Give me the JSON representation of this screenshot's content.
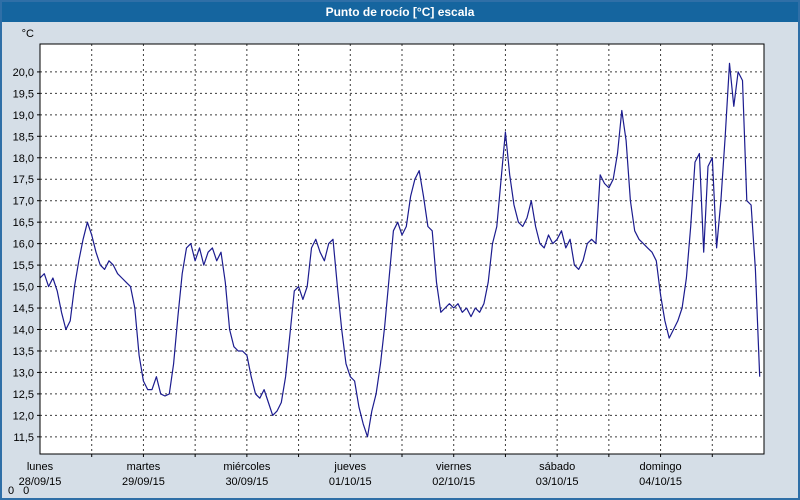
{
  "window": {
    "title": "Punto de rocío [°C] escala"
  },
  "footer": {
    "status": "0  0"
  },
  "chart_data": {
    "type": "line",
    "title": "Punto de rocío [°C] escala",
    "xlabel": "",
    "ylabel": "°C",
    "ylim": [
      11.1,
      20.65
    ],
    "grid": "dashed",
    "legend": "none",
    "line_color": "#1c1c8f",
    "yticks": [
      11.5,
      12.0,
      12.5,
      13.0,
      13.5,
      14.0,
      14.5,
      15.0,
      15.5,
      16.0,
      16.5,
      17.0,
      17.5,
      18.0,
      18.5,
      19.0,
      19.5,
      20.0
    ],
    "ytick_labels": [
      "11,5",
      "12,0",
      "12,5",
      "13,0",
      "13,5",
      "14,0",
      "14,5",
      "15,0",
      "15,5",
      "16,0",
      "16,5",
      "17,0",
      "17,5",
      "18,0",
      "18,5",
      "19,0",
      "19,5",
      "20,0"
    ],
    "x_categories": [
      {
        "label": "lunes",
        "date": "28/09/15"
      },
      {
        "label": "martes",
        "date": "29/09/15"
      },
      {
        "label": "miércoles",
        "date": "30/09/15"
      },
      {
        "label": "jueves",
        "date": "01/10/15"
      },
      {
        "label": "viernes",
        "date": "02/10/15"
      },
      {
        "label": "sábado",
        "date": "03/10/15"
      },
      {
        "label": "domingo",
        "date": "04/10/15"
      }
    ],
    "points_per_day": 24,
    "series": [
      {
        "name": "Punto de rocío [°C]",
        "color": "#1c1c8f",
        "values": [
          15.2,
          15.3,
          15.0,
          15.2,
          14.9,
          14.4,
          14.0,
          14.2,
          15.0,
          15.6,
          16.1,
          16.5,
          16.2,
          15.8,
          15.5,
          15.4,
          15.6,
          15.5,
          15.3,
          15.2,
          15.1,
          15.0,
          14.5,
          13.4,
          12.8,
          12.6,
          12.6,
          12.9,
          12.5,
          12.45,
          12.5,
          13.2,
          14.3,
          15.3,
          15.9,
          16.0,
          15.6,
          15.9,
          15.5,
          15.8,
          15.9,
          15.6,
          15.8,
          15.1,
          14.0,
          13.6,
          13.5,
          13.5,
          13.4,
          12.9,
          12.5,
          12.4,
          12.6,
          12.3,
          12.0,
          12.1,
          12.3,
          12.9,
          13.9,
          14.9,
          15.0,
          14.7,
          15.0,
          15.9,
          16.1,
          15.8,
          15.6,
          16.0,
          16.1,
          15.0,
          14.0,
          13.2,
          12.9,
          12.8,
          12.2,
          11.8,
          11.5,
          12.1,
          12.5,
          13.2,
          14.1,
          15.2,
          16.3,
          16.5,
          16.2,
          16.4,
          17.1,
          17.5,
          17.7,
          17.1,
          16.4,
          16.3,
          15.1,
          14.4,
          14.5,
          14.6,
          14.5,
          14.6,
          14.4,
          14.5,
          14.3,
          14.5,
          14.4,
          14.6,
          15.1,
          16.0,
          16.4,
          17.5,
          18.6,
          17.6,
          16.9,
          16.5,
          16.4,
          16.6,
          17.0,
          16.4,
          16.0,
          15.9,
          16.2,
          16.0,
          16.1,
          16.3,
          15.9,
          16.1,
          15.5,
          15.4,
          15.6,
          16.0,
          16.1,
          16.0,
          17.6,
          17.4,
          17.3,
          17.5,
          18.1,
          19.1,
          18.4,
          17.0,
          16.3,
          16.1,
          16.0,
          15.9,
          15.8,
          15.6,
          14.8,
          14.2,
          13.8,
          14.0,
          14.2,
          14.5,
          15.2,
          16.4,
          17.9,
          18.1,
          15.8,
          17.8,
          18.0,
          15.9,
          17.0,
          18.5,
          20.2,
          19.2,
          20.0,
          19.8,
          17.0,
          16.9,
          15.4,
          12.9
        ]
      }
    ]
  }
}
